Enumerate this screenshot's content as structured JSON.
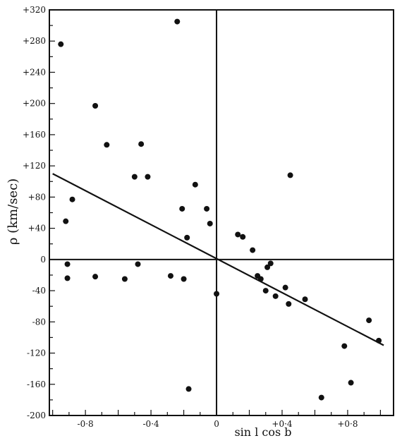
{
  "chart_data": {
    "type": "scatter",
    "title": "",
    "xlabel": "sin l cos b",
    "ylabel": "ρ (km/sec)",
    "xlim": [
      -1.02,
      1.08
    ],
    "ylim": [
      -200,
      320
    ],
    "x_ticks": [
      -0.8,
      -0.4,
      0,
      0.4,
      0.8
    ],
    "x_tick_labels": [
      "-0·8",
      "-0·4",
      "0",
      "+0·4",
      "+0·8"
    ],
    "y_ticks": [
      320,
      280,
      240,
      200,
      160,
      120,
      80,
      40,
      0,
      -40,
      -80,
      -120,
      -160,
      -200
    ],
    "y_tick_labels": [
      "+320",
      "+280",
      "+240",
      "+200",
      "+160",
      "+120",
      "+80",
      "+40",
      "0",
      "-40",
      "-80",
      "-120",
      "-160",
      "-200"
    ],
    "grid": false,
    "fit_line": {
      "x": [
        -1.0,
        1.02
      ],
      "y": [
        110,
        -110
      ]
    },
    "points": [
      {
        "x": -0.95,
        "y": 276
      },
      {
        "x": -0.24,
        "y": 305
      },
      {
        "x": -0.74,
        "y": 197
      },
      {
        "x": -0.67,
        "y": 147
      },
      {
        "x": -0.46,
        "y": 148
      },
      {
        "x": -0.5,
        "y": 106
      },
      {
        "x": -0.42,
        "y": 106
      },
      {
        "x": -0.13,
        "y": 96
      },
      {
        "x": -0.88,
        "y": 77
      },
      {
        "x": -0.92,
        "y": 49
      },
      {
        "x": -0.21,
        "y": 65
      },
      {
        "x": -0.06,
        "y": 65
      },
      {
        "x": -0.04,
        "y": 46
      },
      {
        "x": -0.18,
        "y": 28
      },
      {
        "x": 0.13,
        "y": 32
      },
      {
        "x": 0.16,
        "y": 29
      },
      {
        "x": 0.22,
        "y": 12
      },
      {
        "x": 0.45,
        "y": 108
      },
      {
        "x": -0.91,
        "y": -6
      },
      {
        "x": -0.91,
        "y": -24
      },
      {
        "x": -0.74,
        "y": -22
      },
      {
        "x": -0.56,
        "y": -25
      },
      {
        "x": -0.48,
        "y": -6
      },
      {
        "x": -0.28,
        "y": -21
      },
      {
        "x": -0.2,
        "y": -25
      },
      {
        "x": 0.0,
        "y": -44
      },
      {
        "x": 0.25,
        "y": -21
      },
      {
        "x": 0.27,
        "y": -25
      },
      {
        "x": 0.3,
        "y": -40
      },
      {
        "x": 0.31,
        "y": -10
      },
      {
        "x": 0.33,
        "y": -5
      },
      {
        "x": 0.36,
        "y": -47
      },
      {
        "x": 0.42,
        "y": -36
      },
      {
        "x": 0.44,
        "y": -57
      },
      {
        "x": 0.54,
        "y": -51
      },
      {
        "x": 0.93,
        "y": -78
      },
      {
        "x": 0.78,
        "y": -111
      },
      {
        "x": 0.99,
        "y": -104
      },
      {
        "x": -0.17,
        "y": -166
      },
      {
        "x": 0.64,
        "y": -177
      },
      {
        "x": 0.82,
        "y": -158
      }
    ]
  }
}
